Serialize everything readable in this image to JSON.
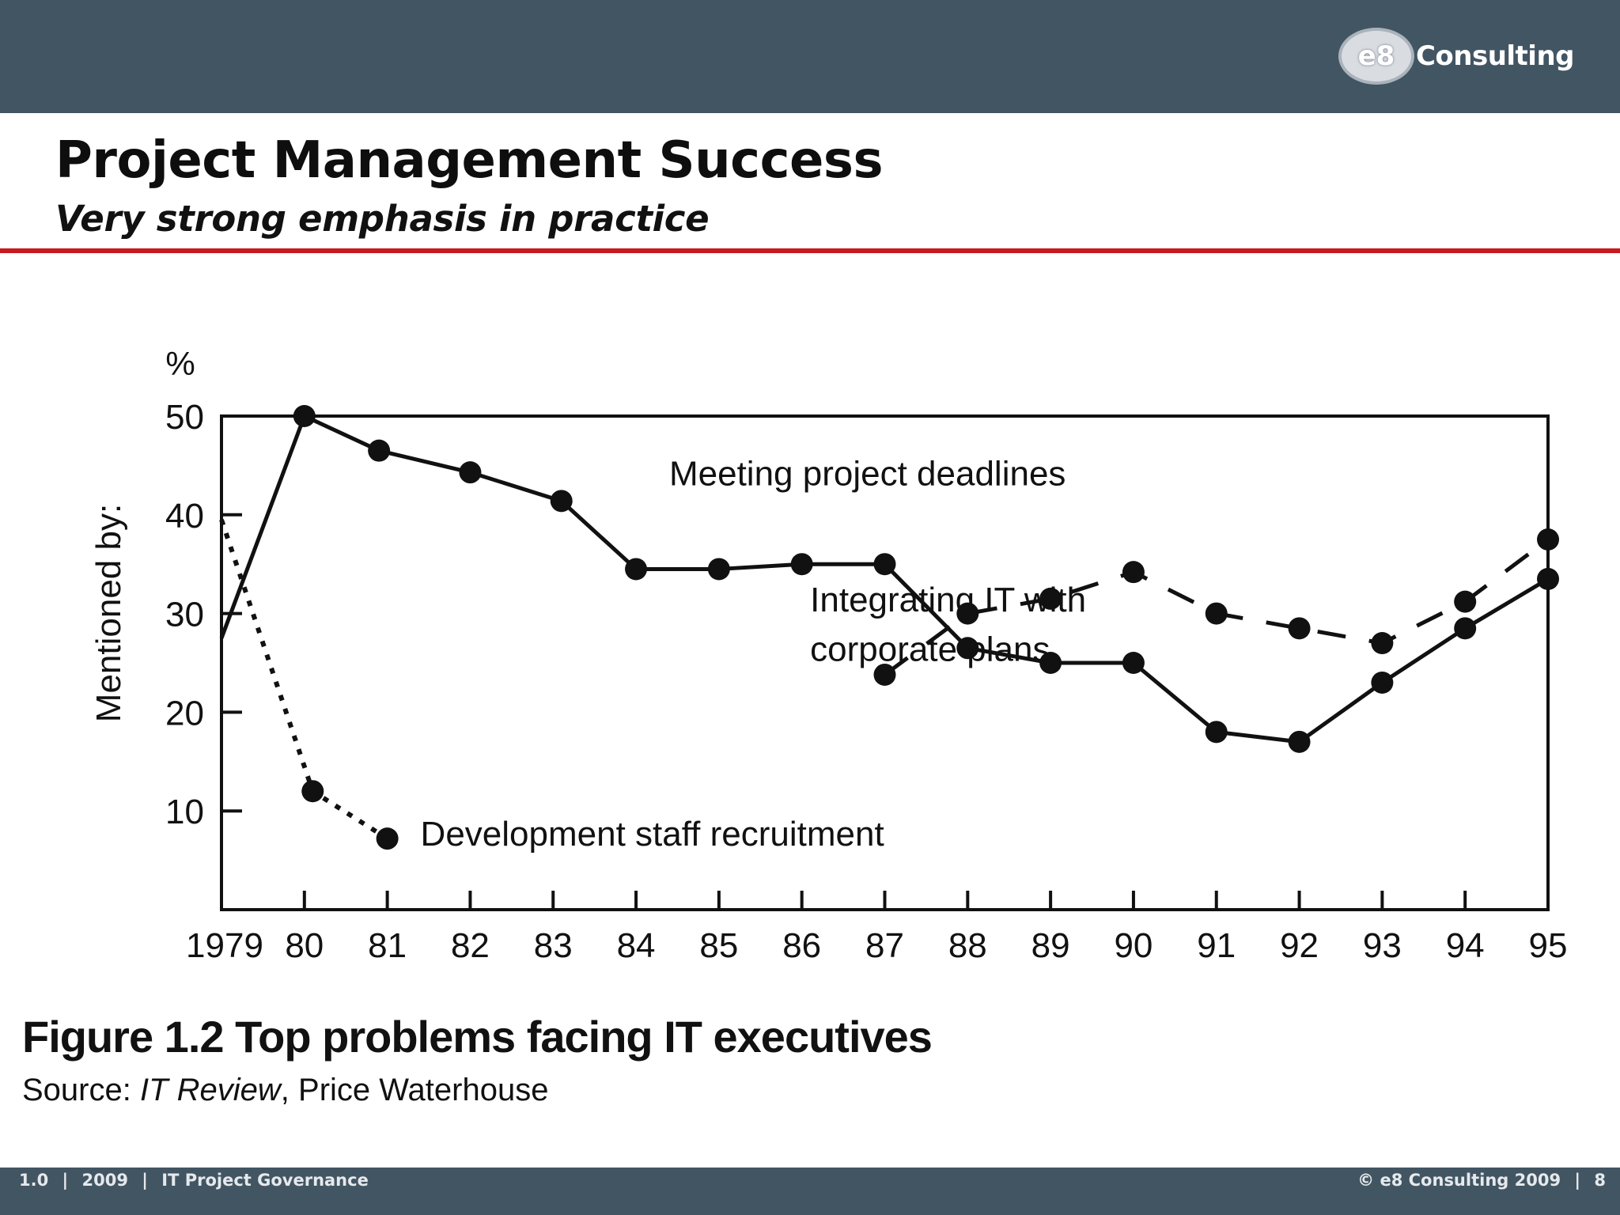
{
  "header": {
    "logo_badge": "e8",
    "logo_text": "Consulting",
    "title": "Project Management Success",
    "subtitle": "Very strong emphasis in practice"
  },
  "figure": {
    "caption": "Figure 1.2  Top problems facing IT executives",
    "source_prefix": "Source: ",
    "source_publication": "IT Review",
    "source_suffix": ", Price Waterhouse"
  },
  "footer": {
    "version": "1.0",
    "sep1": "|",
    "year": "2009",
    "sep2": "|",
    "project": "IT Project Governance",
    "copyright": "© e8 Consulting 2009",
    "sep3": "|",
    "page": "8"
  },
  "chart_data": {
    "type": "line",
    "y_unit_label": "%",
    "ylabel": "Mentioned by:",
    "ylim": [
      0,
      50
    ],
    "yticks": [
      10,
      20,
      30,
      40,
      50
    ],
    "x_tick_labels": [
      "1979",
      "80",
      "81",
      "82",
      "83",
      "84",
      "85",
      "86",
      "87",
      "88",
      "89",
      "90",
      "91",
      "92",
      "93",
      "94",
      "95"
    ],
    "xlim": [
      1979,
      1995
    ],
    "grid": false,
    "legend": "inline labels",
    "series": [
      {
        "name": "Meeting project deadlines",
        "style": "solid",
        "marker_start_index": 1,
        "x": [
          1979,
          1980,
          1980.9,
          1982,
          1983.1,
          1984,
          1985,
          1986,
          1987,
          1988,
          1989,
          1990,
          1991,
          1992,
          1993,
          1994,
          1995
        ],
        "y": [
          27.5,
          50,
          46.5,
          44.3,
          41.4,
          34.5,
          34.5,
          35,
          35,
          26.5,
          25,
          25,
          18,
          17,
          23,
          28.5,
          33.5
        ]
      },
      {
        "name": "Integrating IT with corporate plans",
        "style": "dashed",
        "marker_start_index": 0,
        "x": [
          1987,
          1988,
          1989,
          1990,
          1991,
          1992,
          1993,
          1994,
          1995
        ],
        "y": [
          23.8,
          30,
          31.5,
          34.2,
          30,
          28.5,
          27,
          31.2,
          37.5
        ]
      },
      {
        "name": "Development staff recruitment",
        "style": "dotted",
        "marker_start_index": 1,
        "x": [
          1979,
          1980.1,
          1981
        ],
        "y": [
          39.5,
          12,
          7.2
        ]
      }
    ],
    "annotations": [
      {
        "text": "Meeting project deadlines",
        "x": 1984.4,
        "y": 43
      },
      {
        "text": "Integrating IT with",
        "x": 1986.1,
        "y": 30.2
      },
      {
        "text": "corporate plans",
        "x": 1986.1,
        "y": 25.2
      },
      {
        "text": "Development staff recruitment",
        "x": 1981.4,
        "y": 6.5
      }
    ]
  }
}
